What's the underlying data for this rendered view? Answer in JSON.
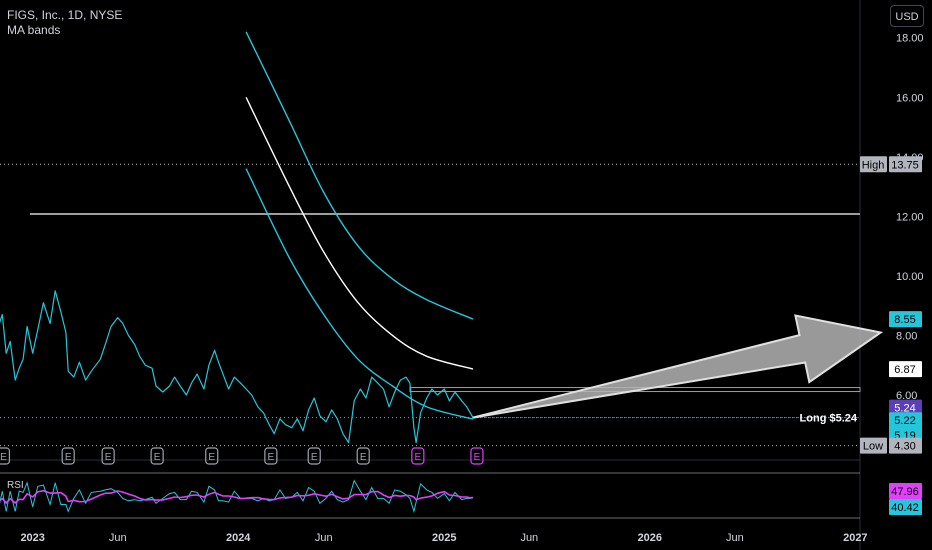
{
  "header": {
    "title": "FIGS, Inc., 1D, NYSE",
    "indicator": "MA bands",
    "currency": "USD"
  },
  "chart_data": {
    "type": "line",
    "symbol": "FIGS, Inc.",
    "interval": "1D",
    "exchange": "NYSE",
    "y_axis": {
      "ticks": [
        "18.00",
        "16.00",
        "14.00",
        "12.00",
        "10.00",
        "8.00",
        "6.00"
      ],
      "tick_values": [
        18,
        16,
        14,
        12,
        10,
        8,
        6
      ],
      "range": [
        3.95,
        19.1
      ]
    },
    "x_axis": {
      "tick_labels": [
        "2023",
        "Jun",
        "2024",
        "Jun",
        "2025",
        "Jun",
        "2026",
        "Jun",
        "2027"
      ],
      "tick_dates": [
        "2023-01-01",
        "2023-06-01",
        "2024-01-01",
        "2024-06-01",
        "2025-01-01",
        "2025-06-01",
        "2026-01-01",
        "2026-06-01",
        "2027-01-01"
      ],
      "range": [
        "2022-09-01",
        "2027-04-01"
      ]
    },
    "series": [
      {
        "kind": "price",
        "color": "#26c6da",
        "points": [
          [
            "2022-09-15",
            10.6
          ],
          [
            "2022-09-20",
            13.6
          ],
          [
            "2022-09-23",
            13.0
          ],
          [
            "2022-10-01",
            12.1
          ],
          [
            "2022-10-08",
            12.6
          ],
          [
            "2022-10-15",
            9.0
          ],
          [
            "2022-10-22",
            9.4
          ],
          [
            "2022-11-01",
            8.3
          ],
          [
            "2022-11-08",
            8.7
          ],
          [
            "2022-11-15",
            7.4
          ],
          [
            "2022-11-22",
            7.8
          ],
          [
            "2022-12-01",
            6.5
          ],
          [
            "2022-12-08",
            6.9
          ],
          [
            "2022-12-15",
            7.2
          ],
          [
            "2022-12-22",
            8.3
          ],
          [
            "2023-01-01",
            7.4
          ],
          [
            "2023-01-10",
            8.2
          ],
          [
            "2023-01-20",
            9.1
          ],
          [
            "2023-02-01",
            8.4
          ],
          [
            "2023-02-10",
            9.5
          ],
          [
            "2023-02-20",
            8.8
          ],
          [
            "2023-03-01",
            8.1
          ],
          [
            "2023-03-05",
            6.8
          ],
          [
            "2023-03-15",
            6.6
          ],
          [
            "2023-03-25",
            7.1
          ],
          [
            "2023-04-05",
            6.5
          ],
          [
            "2023-04-15",
            6.8
          ],
          [
            "2023-05-01",
            7.2
          ],
          [
            "2023-05-10",
            7.7
          ],
          [
            "2023-05-20",
            8.3
          ],
          [
            "2023-06-01",
            8.6
          ],
          [
            "2023-06-10",
            8.4
          ],
          [
            "2023-06-20",
            8.0
          ],
          [
            "2023-07-01",
            7.7
          ],
          [
            "2023-07-10",
            7.3
          ],
          [
            "2023-07-20",
            7.0
          ],
          [
            "2023-08-01",
            6.9
          ],
          [
            "2023-08-08",
            6.3
          ],
          [
            "2023-08-20",
            6.1
          ],
          [
            "2023-09-01",
            6.3
          ],
          [
            "2023-09-10",
            6.6
          ],
          [
            "2023-09-20",
            6.3
          ],
          [
            "2023-10-01",
            6.0
          ],
          [
            "2023-10-10",
            6.4
          ],
          [
            "2023-10-20",
            6.7
          ],
          [
            "2023-11-01",
            6.2
          ],
          [
            "2023-11-10",
            7.0
          ],
          [
            "2023-11-20",
            7.5
          ],
          [
            "2023-11-27",
            7.1
          ],
          [
            "2023-12-05",
            6.7
          ],
          [
            "2023-12-15",
            6.2
          ],
          [
            "2023-12-25",
            6.6
          ],
          [
            "2024-01-05",
            6.4
          ],
          [
            "2024-01-15",
            6.2
          ],
          [
            "2024-01-25",
            6.0
          ],
          [
            "2024-02-05",
            5.6
          ],
          [
            "2024-02-15",
            5.4
          ],
          [
            "2024-02-25",
            5.0
          ],
          [
            "2024-03-05",
            4.7
          ],
          [
            "2024-03-15",
            5.2
          ],
          [
            "2024-03-25",
            5.0
          ],
          [
            "2024-04-05",
            4.9
          ],
          [
            "2024-04-15",
            5.2
          ],
          [
            "2024-04-25",
            4.8
          ],
          [
            "2024-05-05",
            5.5
          ],
          [
            "2024-05-15",
            5.9
          ],
          [
            "2024-05-25",
            5.3
          ],
          [
            "2024-06-05",
            5.1
          ],
          [
            "2024-06-15",
            5.5
          ],
          [
            "2024-06-25",
            5.2
          ],
          [
            "2024-07-05",
            4.7
          ],
          [
            "2024-07-15",
            4.4
          ],
          [
            "2024-07-25",
            5.8
          ],
          [
            "2024-08-05",
            6.2
          ],
          [
            "2024-08-15",
            5.9
          ],
          [
            "2024-08-25",
            6.6
          ],
          [
            "2024-09-05",
            6.4
          ],
          [
            "2024-09-15",
            6.2
          ],
          [
            "2024-09-25",
            5.6
          ],
          [
            "2024-10-05",
            6.1
          ],
          [
            "2024-10-15",
            6.5
          ],
          [
            "2024-10-25",
            6.6
          ],
          [
            "2024-11-01",
            6.4
          ],
          [
            "2024-11-08",
            4.9
          ],
          [
            "2024-11-12",
            4.4
          ],
          [
            "2024-11-20",
            5.4
          ],
          [
            "2024-12-01",
            5.9
          ],
          [
            "2024-12-10",
            6.2
          ],
          [
            "2024-12-20",
            6.0
          ],
          [
            "2025-01-01",
            6.2
          ],
          [
            "2025-01-10",
            5.8
          ],
          [
            "2025-01-20",
            6.1
          ],
          [
            "2025-02-01",
            5.8
          ],
          [
            "2025-02-10",
            5.6
          ],
          [
            "2025-02-16",
            5.4
          ],
          [
            "2025-02-21",
            5.24
          ]
        ]
      },
      {
        "kind": "ma_upper",
        "color": "#26c6da",
        "points": [
          [
            "2024-01-15",
            18.2
          ],
          [
            "2024-04-01",
            15.2
          ],
          [
            "2024-06-01",
            12.8
          ],
          [
            "2024-08-01",
            11.0
          ],
          [
            "2024-10-01",
            9.9
          ],
          [
            "2024-12-01",
            9.2
          ],
          [
            "2025-02-21",
            8.55
          ]
        ]
      },
      {
        "kind": "ma_middle",
        "color": "#ffffff",
        "points": [
          [
            "2024-01-15",
            16.0
          ],
          [
            "2024-04-01",
            13.0
          ],
          [
            "2024-06-01",
            10.8
          ],
          [
            "2024-08-01",
            9.1
          ],
          [
            "2024-10-01",
            8.0
          ],
          [
            "2024-12-01",
            7.3
          ],
          [
            "2025-02-21",
            6.87
          ]
        ]
      },
      {
        "kind": "ma_lower",
        "color": "#26c6da",
        "points": [
          [
            "2024-01-15",
            13.6
          ],
          [
            "2024-04-01",
            10.6
          ],
          [
            "2024-06-01",
            8.7
          ],
          [
            "2024-08-01",
            7.2
          ],
          [
            "2024-10-01",
            6.3
          ],
          [
            "2024-12-01",
            5.6
          ],
          [
            "2025-02-21",
            5.19
          ]
        ]
      }
    ],
    "annotations": {
      "resistance_line": 12.08,
      "high_line": 13.75,
      "low_line": 4.3,
      "long_line": 5.24,
      "range_top": 6.25,
      "range_bottom": 6.15,
      "arrow": {
        "from": [
          "2025-02-21",
          5.24
        ],
        "to": [
          "2027-02-15",
          8.1
        ]
      },
      "long_label": "Long $5.24",
      "earnings_marker": "E",
      "earnings_dates": [
        "2022-09-15",
        "2022-11-10",
        "2023-03-05",
        "2023-05-15",
        "2023-08-10",
        "2023-11-15",
        "2024-02-28",
        "2024-05-15",
        "2024-08-10",
        "2024-11-15",
        "2025-02-28"
      ]
    },
    "price_labels": [
      {
        "text": "High",
        "value": "13.75",
        "y": 13.75,
        "bg": "#b2b5be",
        "fg": "#000000",
        "tag_bg": "#b2b5be"
      },
      {
        "text": "",
        "value": "8.55",
        "y": 8.55,
        "bg": "#26c6da",
        "fg": "#000000"
      },
      {
        "text": "",
        "value": "6.87",
        "y": 6.87,
        "bg": "#ffffff",
        "fg": "#000000"
      },
      {
        "text": "",
        "value": "5.24",
        "y": 5.24,
        "bg": "#5b3fb8",
        "fg": "#ffffff",
        "shift": -10
      },
      {
        "text": "",
        "value": "5.22",
        "y": 5.22,
        "bg": "#26c6da",
        "fg": "#000000",
        "shift": 2
      },
      {
        "text": "",
        "value": "5.19",
        "y": 5.19,
        "bg": "#26c6da",
        "fg": "#000000",
        "shift": 16
      },
      {
        "text": "Low",
        "value": "4.30",
        "y": 4.3,
        "bg": "#b2b5be",
        "fg": "#000000",
        "tag_bg": "#b2b5be"
      }
    ],
    "rsi": {
      "label": "RSI",
      "values": [
        "47.96",
        "40.42"
      ],
      "colors": [
        "#e040fb",
        "#26c6da"
      ]
    }
  }
}
